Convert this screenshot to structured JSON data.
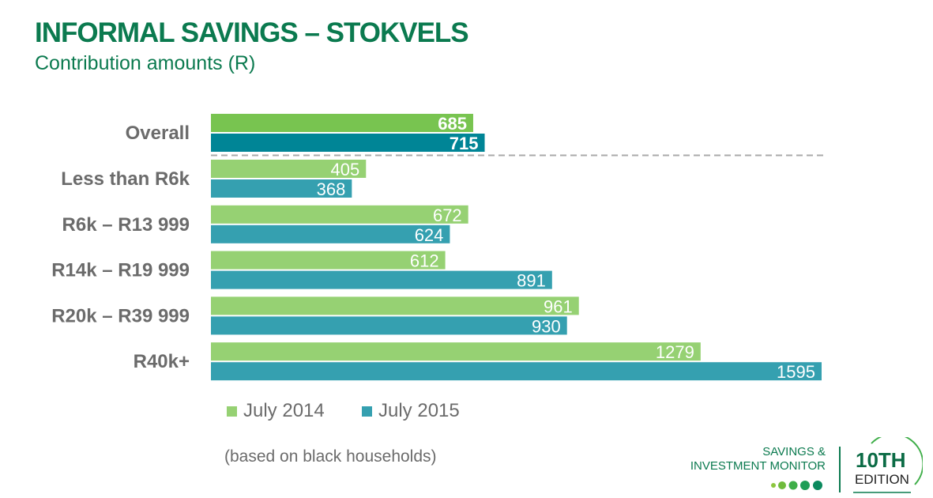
{
  "title": "INFORMAL SAVINGS – STOKVELS",
  "subtitle": "Contribution amounts (R)",
  "note": "(based on black households)",
  "logo": {
    "line1": "SAVINGS &",
    "line2": "INVESTMENT MONITOR",
    "edition_num": "10TH",
    "edition_word": "EDITION"
  },
  "chart_data": {
    "type": "bar",
    "orientation": "horizontal",
    "categories": [
      "Overall",
      "Less than R6k",
      "R6k – R13 999",
      "R14k – R19 999",
      "R20k – R39 999",
      "R40k+"
    ],
    "series": [
      {
        "name": "July 2014",
        "values": [
          685,
          405,
          672,
          612,
          961,
          1279
        ],
        "color": "#96d173",
        "highlight_color": "#78c450"
      },
      {
        "name": "July 2015",
        "values": [
          715,
          368,
          624,
          891,
          930,
          1595
        ],
        "color": "#35a0b0",
        "highlight_color": "#008596"
      }
    ],
    "xlim": [
      0,
      1595
    ],
    "grid": false,
    "legend": "bottom",
    "separator_after": "Overall"
  }
}
